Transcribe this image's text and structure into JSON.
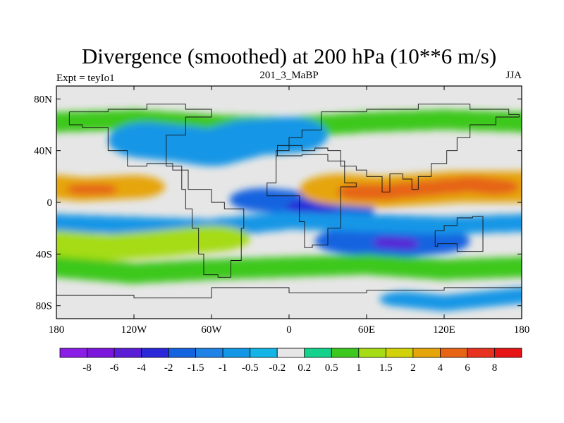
{
  "chart_data": {
    "type": "heatmap",
    "title": "Divergence (smoothed) at 200 hPa (10**6 m/s)",
    "subtitle_left": "Expt = teyIo1",
    "subtitle_center": "201_3_MaBP",
    "subtitle_right": "JJA",
    "x_range": [
      -180,
      180
    ],
    "y_range": [
      -90,
      90
    ],
    "x_ticks": [
      {
        "value": -180,
        "label": "180"
      },
      {
        "value": -120,
        "label": "120W"
      },
      {
        "value": -60,
        "label": "60W"
      },
      {
        "value": 0,
        "label": "0"
      },
      {
        "value": 60,
        "label": "60E"
      },
      {
        "value": 120,
        "label": "120E"
      },
      {
        "value": 180,
        "label": "180"
      }
    ],
    "y_ticks": [
      {
        "value": 80,
        "label": "80N"
      },
      {
        "value": 40,
        "label": "40N"
      },
      {
        "value": 0,
        "label": "0"
      },
      {
        "value": -40,
        "label": "40S"
      },
      {
        "value": -80,
        "label": "80S"
      }
    ],
    "colorbar": {
      "levels": [
        "-8",
        "-6",
        "-4",
        "-2",
        "-1.5",
        "-1",
        "-0.5",
        "-0.2",
        "0.2",
        "0.5",
        "1",
        "1.5",
        "2",
        "4",
        "6",
        "8"
      ],
      "colors": [
        "#8a1ee6",
        "#7d16dc",
        "#5a1ed6",
        "#2a28d8",
        "#1464e0",
        "#1e82e6",
        "#1496e6",
        "#14b4e6",
        "#e6e6e6",
        "#14d28c",
        "#3cc81e",
        "#a5dc14",
        "#d2d20a",
        "#e6a50a",
        "#e66414",
        "#e6321e",
        "#e61414"
      ]
    },
    "regions": [
      {
        "value": 0.5,
        "lon": [
          -180,
          -120,
          -60,
          0,
          60,
          120,
          180
        ],
        "lat": [
          62,
          64,
          60,
          58,
          62,
          64,
          62
        ],
        "w": 22,
        "h": 8
      },
      {
        "value": -1,
        "lon": [
          -110,
          -80,
          -60,
          -30,
          0
        ],
        "lat": [
          48,
          45,
          42,
          50,
          52
        ],
        "w": 30,
        "h": 14
      },
      {
        "value": 2,
        "lon": [
          -180,
          -160,
          -140,
          -120
        ],
        "lat": [
          12,
          10,
          11,
          12
        ],
        "w": 24,
        "h": 9
      },
      {
        "value": 4,
        "lon": [
          -160,
          -145
        ],
        "lat": [
          10,
          10
        ],
        "w": 12,
        "h": 4
      },
      {
        "value": -2,
        "lon": [
          -20,
          0,
          20,
          40
        ],
        "lat": [
          2,
          0,
          -2,
          -6
        ],
        "w": 26,
        "h": 9
      },
      {
        "value": -4,
        "lon": [
          10,
          25
        ],
        "lat": [
          -4,
          -7
        ],
        "w": 12,
        "h": 5
      },
      {
        "value": -2,
        "lon": [
          50,
          70,
          90,
          110
        ],
        "lat": [
          -30,
          -32,
          -32,
          -30
        ],
        "w": 30,
        "h": 10
      },
      {
        "value": -6,
        "lon": [
          75,
          90
        ],
        "lat": [
          -31,
          -32
        ],
        "w": 10,
        "h": 4
      },
      {
        "value": 2,
        "lon": [
          40,
          70,
          100,
          130,
          160,
          180
        ],
        "lat": [
          10,
          8,
          10,
          12,
          12,
          12
        ],
        "w": 32,
        "h": 12
      },
      {
        "value": 4,
        "lon": [
          55,
          75,
          140,
          160
        ],
        "lat": [
          8,
          8,
          14,
          12
        ],
        "w": 18,
        "h": 6
      },
      {
        "value": -1,
        "lon": [
          -180,
          -120,
          -60,
          0,
          60,
          120,
          180
        ],
        "lat": [
          -16,
          -18,
          -20,
          -14,
          -16,
          -18,
          -16
        ],
        "w": 22,
        "h": 7
      },
      {
        "value": 1,
        "lon": [
          -180,
          -140,
          -100,
          -60
        ],
        "lat": [
          -32,
          -35,
          -32,
          -28
        ],
        "w": 30,
        "h": 10
      },
      {
        "value": 0.5,
        "lon": [
          -180,
          -120,
          -60,
          0,
          60,
          120,
          180
        ],
        "lat": [
          -50,
          -55,
          -52,
          -50,
          -48,
          -52,
          -50
        ],
        "w": 26,
        "h": 8
      },
      {
        "value": -1,
        "lon": [
          90,
          120,
          150,
          180
        ],
        "lat": [
          -75,
          -78,
          -75,
          -72
        ],
        "w": 20,
        "h": 6
      }
    ],
    "land_outline": [
      [
        [
          -170,
          70
        ],
        [
          -140,
          72
        ],
        [
          -110,
          76
        ],
        [
          -80,
          72
        ],
        [
          -60,
          66
        ],
        [
          -80,
          52
        ],
        [
          -95,
          28
        ],
        [
          -83,
          10
        ],
        [
          -80,
          -5
        ],
        [
          -75,
          -20
        ],
        [
          -70,
          -40
        ],
        [
          -66,
          -56
        ],
        [
          -55,
          -58
        ],
        [
          -45,
          -45
        ],
        [
          -37,
          -20
        ],
        [
          -35,
          -5
        ],
        [
          -50,
          0
        ],
        [
          -60,
          10
        ],
        [
          -78,
          25
        ],
        [
          -90,
          30
        ],
        [
          -110,
          28
        ],
        [
          -125,
          40
        ],
        [
          -140,
          58
        ],
        [
          -160,
          60
        ],
        [
          -170,
          70
        ]
      ],
      [
        [
          -10,
          36
        ],
        [
          10,
          37
        ],
        [
          30,
          32
        ],
        [
          43,
          15
        ],
        [
          52,
          12
        ],
        [
          40,
          -5
        ],
        [
          40,
          -20
        ],
        [
          30,
          -33
        ],
        [
          18,
          -35
        ],
        [
          12,
          -15
        ],
        [
          8,
          5
        ],
        [
          -8,
          5
        ],
        [
          -17,
          15
        ],
        [
          -10,
          36
        ]
      ],
      [
        [
          -10,
          36
        ],
        [
          -9,
          44
        ],
        [
          0,
          50
        ],
        [
          10,
          56
        ],
        [
          25,
          70
        ],
        [
          60,
          72
        ],
        [
          100,
          76
        ],
        [
          140,
          72
        ],
        [
          170,
          68
        ],
        [
          178,
          66
        ],
        [
          160,
          60
        ],
        [
          140,
          50
        ],
        [
          130,
          40
        ],
        [
          122,
          30
        ],
        [
          110,
          20
        ],
        [
          100,
          10
        ],
        [
          95,
          18
        ],
        [
          88,
          22
        ],
        [
          78,
          8
        ],
        [
          72,
          20
        ],
        [
          60,
          25
        ],
        [
          52,
          28
        ],
        [
          40,
          40
        ],
        [
          30,
          42
        ],
        [
          20,
          40
        ],
        [
          10,
          44
        ],
        [
          0,
          40
        ],
        [
          -10,
          36
        ]
      ],
      [
        [
          113,
          -22
        ],
        [
          120,
          -18
        ],
        [
          130,
          -12
        ],
        [
          142,
          -11
        ],
        [
          150,
          -25
        ],
        [
          150,
          -38
        ],
        [
          140,
          -38
        ],
        [
          130,
          -32
        ],
        [
          115,
          -34
        ],
        [
          113,
          -22
        ]
      ],
      [
        [
          -180,
          -72
        ],
        [
          -120,
          -74
        ],
        [
          -60,
          -66
        ],
        [
          0,
          -70
        ],
        [
          60,
          -68
        ],
        [
          120,
          -66
        ],
        [
          180,
          -72
        ]
      ]
    ]
  }
}
